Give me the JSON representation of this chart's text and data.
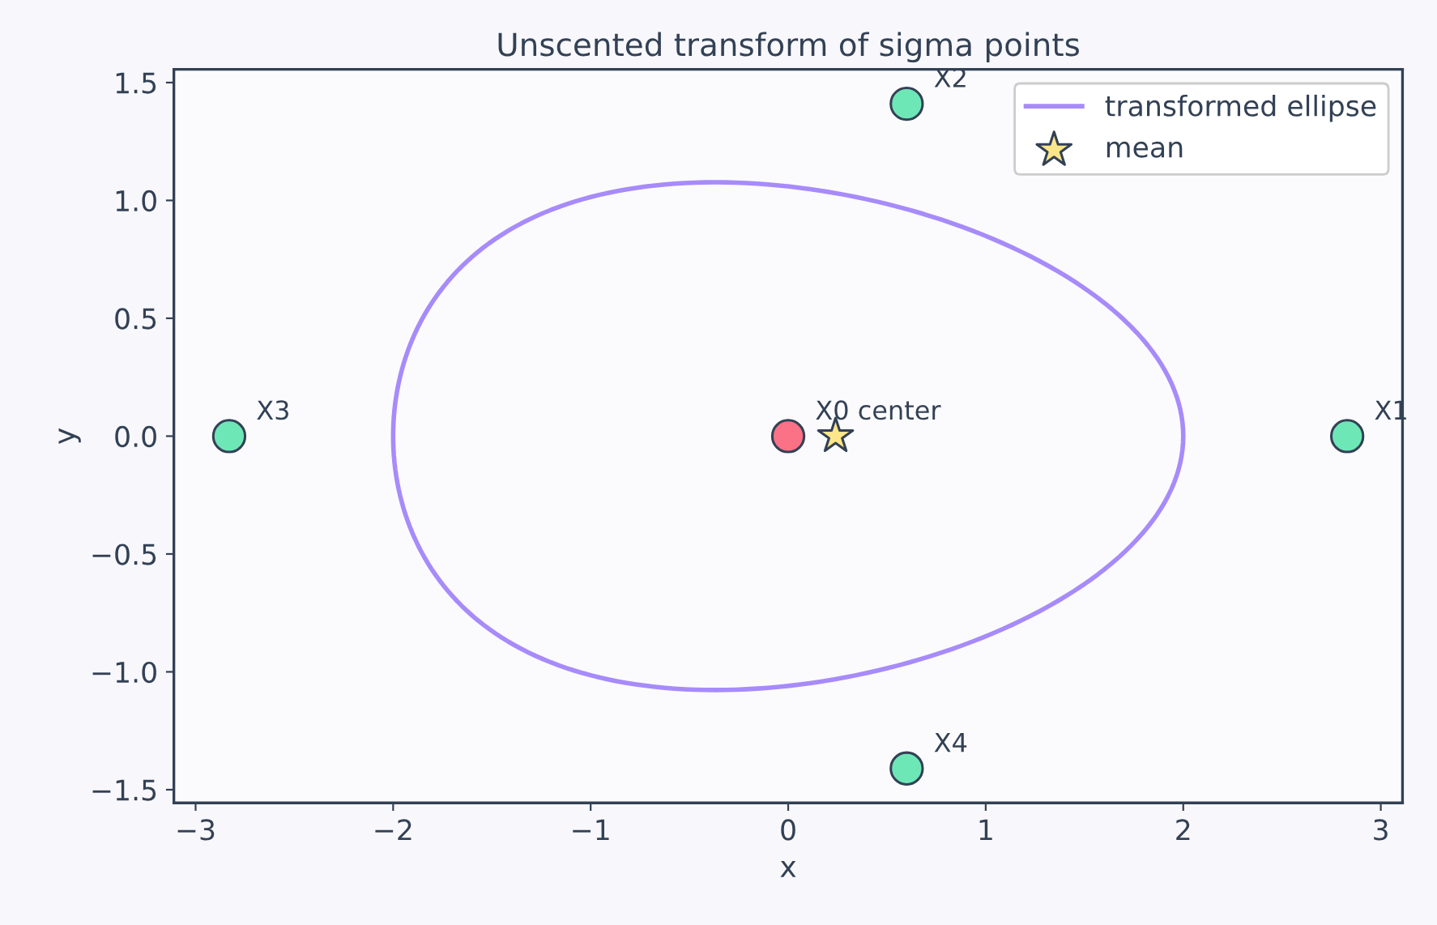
{
  "chart_data": {
    "type": "scatter",
    "title": "Unscented transform of sigma points",
    "xlabel": "x",
    "ylabel": "y",
    "xlim": [
      -3.11,
      3.11
    ],
    "ylim": [
      -1.556,
      1.556
    ],
    "xticks": [
      {
        "value": -3,
        "label": "−3"
      },
      {
        "value": -2,
        "label": "−2"
      },
      {
        "value": -1,
        "label": "−1"
      },
      0,
      1,
      2,
      3
    ],
    "yticks": [
      {
        "value": -1.5,
        "label": "−1.5"
      },
      {
        "value": -1.0,
        "label": "−1.0"
      },
      {
        "value": -0.5,
        "label": "−0.5"
      },
      {
        "value": 0,
        "label": "0.0"
      },
      0.5,
      {
        "value": 1,
        "label": "1.0"
      },
      1.5
    ],
    "grid": false,
    "legend": "top right",
    "series": [
      {
        "name": "transformed ellipse",
        "type": "line",
        "color": "#a78bfa",
        "line_style": "solid"
      },
      {
        "color": "#6ee7b7",
        "marker": "circle",
        "x": [
          2.83,
          0.6,
          -2.83,
          0.6
        ],
        "values": [
          0.0,
          1.41,
          0.0,
          -1.41
        ]
      },
      {
        "color": "#fb7185",
        "marker": "circle",
        "x": [
          0.0
        ],
        "values": [
          0.0
        ]
      },
      {
        "name": "mean",
        "color": "#fde68a",
        "marker": "star",
        "x": [
          0.24
        ],
        "values": [
          0.0
        ]
      }
    ],
    "annotations": [
      {
        "text": "X0 center",
        "x": 0.0,
        "y": 0.0
      },
      {
        "text": "X1",
        "x": 2.83,
        "y": 0.0
      },
      {
        "text": "X2",
        "x": 0.6,
        "y": 1.41
      },
      {
        "text": "X3",
        "x": -2.83,
        "y": 0.0
      },
      {
        "text": "X4",
        "x": 0.6,
        "y": -1.41
      }
    ]
  }
}
